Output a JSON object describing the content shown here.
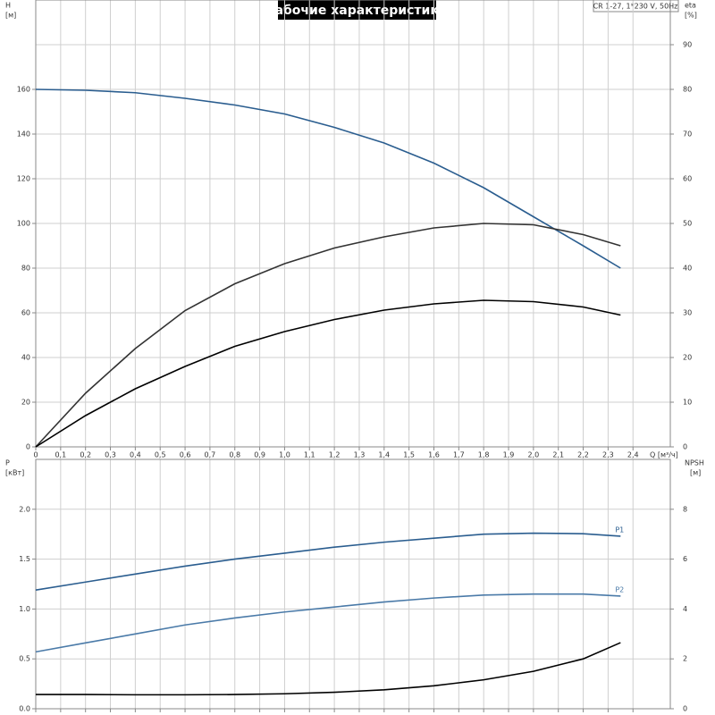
{
  "chart_data": [
    {
      "type": "line",
      "title": "Рабочие характеристики",
      "annotation": "CR 1-27, 1*230 V, 50Hz",
      "ylabel": "H",
      "yunit": "[м]",
      "y2label": "eta",
      "y2unit": "[%]",
      "xlabel": "Q [м³/ч]",
      "xlim": [
        0,
        2.55
      ],
      "ylim": [
        0,
        200
      ],
      "y2lim": [
        0,
        100
      ],
      "xticks": [
        0,
        {
          "value": 0.1,
          "label": "0,1"
        },
        {
          "value": 0.2,
          "label": "0,2"
        },
        {
          "value": 0.3,
          "label": "0,3"
        },
        {
          "value": 0.4,
          "label": "0,4"
        },
        {
          "value": 0.5,
          "label": "0,5"
        },
        {
          "value": 0.6,
          "label": "0,6"
        },
        {
          "value": 0.7,
          "label": "0,7"
        },
        {
          "value": 0.8,
          "label": "0,8"
        },
        {
          "value": 0.9,
          "label": "0,9"
        },
        {
          "value": 1.0,
          "label": "1,0"
        },
        {
          "value": 1.1,
          "label": "1,1"
        },
        {
          "value": 1.2,
          "label": "1,2"
        },
        {
          "value": 1.3,
          "label": "1,3"
        },
        {
          "value": 1.4,
          "label": "1,4"
        },
        {
          "value": 1.5,
          "label": "1,5"
        },
        {
          "value": 1.6,
          "label": "1,6"
        },
        {
          "value": 1.7,
          "label": "1,7"
        },
        {
          "value": 1.8,
          "label": "1,8"
        },
        {
          "value": 1.9,
          "label": "1,9"
        },
        {
          "value": 2.0,
          "label": "2,0"
        },
        {
          "value": 2.1,
          "label": "2,1"
        },
        {
          "value": 2.2,
          "label": "2,2"
        },
        {
          "value": 2.3,
          "label": "2,3"
        },
        {
          "value": 2.4,
          "label": "2,4"
        }
      ],
      "show_xtick_labels": true,
      "yticks": [
        0,
        20,
        40,
        60,
        80,
        100,
        120,
        140,
        160
      ],
      "y2ticks": [
        0,
        10,
        20,
        30,
        40,
        50,
        60,
        70,
        80,
        90
      ],
      "grid": true,
      "x": [
        0,
        0.2,
        0.4,
        0.6,
        0.8,
        1.0,
        1.2,
        1.4,
        1.6,
        1.8,
        2.0,
        2.2,
        2.35
      ],
      "series": [
        {
          "color": "#2a5d8f",
          "values": [
            160,
            159.6,
            158.5,
            156,
            153,
            149,
            143,
            136,
            127,
            116,
            103,
            90,
            80
          ]
        },
        {
          "color": "#333333",
          "axis": "y2",
          "values": [
            0,
            12,
            22,
            30.5,
            36.5,
            41,
            44.5,
            47,
            49,
            50,
            49.7,
            47.5,
            45
          ]
        },
        {
          "color": "#000000",
          "axis": "y2",
          "values": [
            0,
            7,
            13,
            18,
            22.5,
            25.8,
            28.5,
            30.6,
            32,
            32.8,
            32.5,
            31.3,
            29.5
          ]
        }
      ]
    },
    {
      "type": "line",
      "ylabel": "P",
      "yunit": "[кВт]",
      "y2label": "NPSH",
      "y2unit": "[м]",
      "xlim": [
        0,
        2.55
      ],
      "ylim": [
        0,
        2.5
      ],
      "y2lim": [
        0,
        10
      ],
      "xticks": [
        0,
        0.1,
        0.2,
        0.3,
        0.4,
        0.5,
        0.6,
        0.7,
        0.8,
        0.9,
        1.0,
        1.1,
        1.2,
        1.3,
        1.4,
        1.5,
        1.6,
        1.7,
        1.8,
        1.9,
        2.0,
        2.1,
        2.2,
        2.3,
        2.4
      ],
      "show_xtick_labels": false,
      "yticks": [
        {
          "value": 0,
          "label": "0.0"
        },
        0.5,
        {
          "value": 1,
          "label": "1.0"
        },
        1.5,
        {
          "value": 2,
          "label": "2.0"
        }
      ],
      "y2ticks": [
        0,
        2,
        4,
        6,
        8
      ],
      "grid": true,
      "x": [
        0,
        0.2,
        0.4,
        0.6,
        0.8,
        1.0,
        1.2,
        1.4,
        1.6,
        1.8,
        2.0,
        2.2,
        2.35
      ],
      "series": [
        {
          "name": "P1",
          "color": "#2a5d8f",
          "values": [
            1.19,
            1.27,
            1.35,
            1.43,
            1.5,
            1.56,
            1.62,
            1.67,
            1.71,
            1.75,
            1.76,
            1.755,
            1.73
          ]
        },
        {
          "name": "P2",
          "color": "#4a7aa8",
          "values": [
            0.57,
            0.66,
            0.75,
            0.84,
            0.91,
            0.97,
            1.02,
            1.07,
            1.11,
            1.14,
            1.15,
            1.15,
            1.13
          ]
        },
        {
          "color": "#000000",
          "axis": "y2",
          "values": [
            0.57,
            0.57,
            0.56,
            0.56,
            0.57,
            0.6,
            0.66,
            0.76,
            0.92,
            1.16,
            1.5,
            2.0,
            2.65
          ]
        }
      ]
    }
  ]
}
